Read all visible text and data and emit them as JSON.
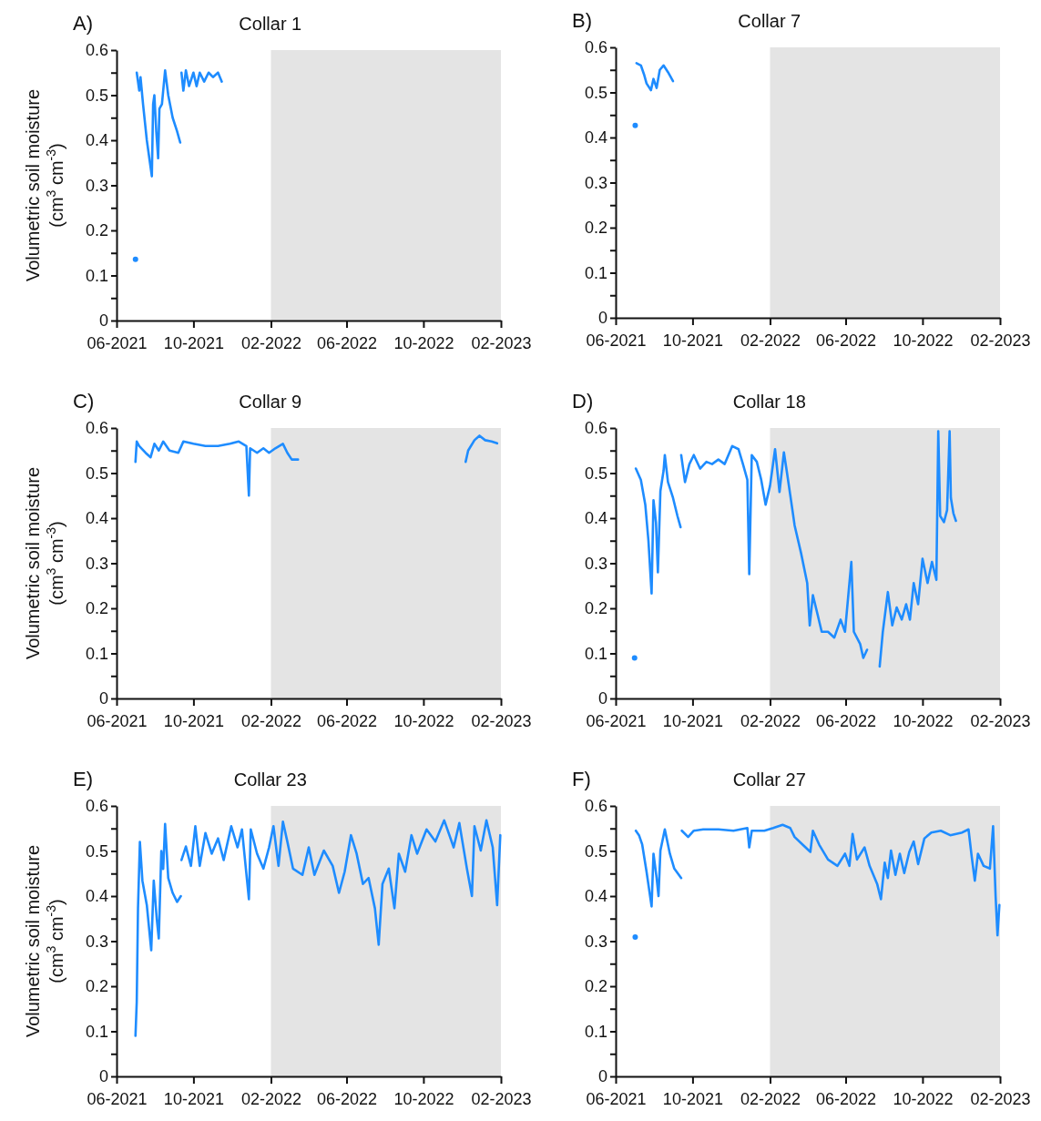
{
  "chart_data": [
    {
      "type": "line",
      "title": "Collar 1",
      "ylabel": "Volumetric soil moisture\n(cm$^{3}$ cm$^{-3}$)",
      "annotations": [
        "A)"
      ],
      "x": [
        "2021-07-01",
        "2021-07-02",
        "2021-07-03",
        "2021-07-07",
        "2021-07-09",
        "2021-07-13",
        "2021-07-19",
        "2021-07-24",
        "2021-07-27",
        "2021-07-29",
        "2021-07-31",
        "2021-08-03",
        "2021-08-06",
        "2021-08-08",
        "2021-08-12",
        "2021-08-17",
        "2021-08-22",
        "2021-08-29",
        "2021-09-05",
        "2021-09-10",
        "2021-09-11",
        "2021-09-12",
        "2021-09-15",
        "2021-09-19",
        "2021-09-24",
        "2021-10-01",
        "2021-10-06",
        "2021-10-11",
        "2021-10-18",
        "2021-10-25",
        "2021-11-01",
        "2021-11-09",
        "2021-11-15"
      ],
      "series": [
        {
          "color": "#1e8cff",
          "values": [
            0.136,
            null,
            0.55,
            0.51,
            0.54,
            0.48,
            0.4,
            0.35,
            0.32,
            0.48,
            0.5,
            0.42,
            0.36,
            0.47,
            0.48,
            0.555,
            0.5,
            0.45,
            0.42,
            0.395,
            null,
            0.55,
            0.51,
            0.555,
            0.52,
            0.55,
            0.52,
            0.55,
            0.53,
            0.55,
            0.54,
            0.55,
            0.53
          ]
        }
      ],
      "xlim": [
        "2021-06-01",
        "2023-02-01"
      ],
      "xticks": [
        {
          "value": "2021-06-01",
          "label": "06-2021"
        },
        {
          "value": "2021-10-01",
          "label": "10-2021"
        },
        {
          "value": "2022-02-01",
          "label": "02-2022"
        },
        {
          "value": "2022-06-01",
          "label": "06-2022"
        },
        {
          "value": "2022-10-01",
          "label": "10-2022"
        },
        {
          "value": "2023-02-01",
          "label": "02-2023"
        }
      ],
      "ylim": [
        0,
        0.6
      ],
      "yticks": [
        0,
        {
          "value": 0.05,
          "label": null
        },
        0.1,
        {
          "value": 0.15,
          "label": null
        },
        0.2,
        {
          "value": 0.25,
          "label": null
        },
        0.3,
        {
          "value": 0.35,
          "label": null
        },
        0.4,
        {
          "value": 0.45,
          "label": null
        },
        0.5,
        {
          "value": 0.55,
          "label": null
        },
        0.6
      ],
      "bands": [
        {
          "axis": "x",
          "from": "2022-02-01",
          "to": "2023-02-01",
          "color": "#e4e4e4"
        }
      ]
    },
    {
      "type": "line",
      "title": "Collar 7",
      "annotations": [
        "B)"
      ],
      "x": [
        "2021-07-02",
        "2021-07-03",
        "2021-07-04",
        "2021-07-11",
        "2021-07-16",
        "2021-07-20",
        "2021-07-27",
        "2021-07-31",
        "2021-08-05",
        "2021-08-10",
        "2021-08-16",
        "2021-08-23",
        "2021-08-31"
      ],
      "series": [
        {
          "color": "#1e8cff",
          "values": [
            0.427,
            null,
            0.565,
            0.56,
            0.54,
            0.52,
            0.505,
            0.53,
            0.51,
            0.55,
            0.56,
            0.545,
            0.525
          ]
        }
      ],
      "xlim": [
        "2021-06-01",
        "2023-02-01"
      ],
      "xticks": [
        {
          "value": "2021-06-01",
          "label": "06-2021"
        },
        {
          "value": "2021-10-01",
          "label": "10-2021"
        },
        {
          "value": "2022-02-01",
          "label": "02-2022"
        },
        {
          "value": "2022-06-01",
          "label": "06-2022"
        },
        {
          "value": "2022-10-01",
          "label": "10-2022"
        },
        {
          "value": "2023-02-01",
          "label": "02-2023"
        }
      ],
      "ylim": [
        0,
        0.6
      ],
      "yticks": [
        0,
        {
          "value": 0.05,
          "label": null
        },
        0.1,
        {
          "value": 0.15,
          "label": null
        },
        0.2,
        {
          "value": 0.25,
          "label": null
        },
        0.3,
        {
          "value": 0.35,
          "label": null
        },
        0.4,
        {
          "value": 0.45,
          "label": null
        },
        0.5,
        {
          "value": 0.55,
          "label": null
        },
        0.6
      ],
      "bands": [
        {
          "axis": "x",
          "from": "2022-02-01",
          "to": "2023-02-01",
          "color": "#e4e4e4"
        }
      ]
    },
    {
      "type": "line",
      "title": "Collar 9",
      "ylabel": "Volumetric soil moisture\n(cm$^{3}$ cm$^{-3}$)",
      "annotations": [
        "C)"
      ],
      "x": [
        "2021-07-01",
        "2021-07-03",
        "2021-07-07",
        "2021-07-17",
        "2021-07-25",
        "2021-07-31",
        "2021-08-07",
        "2021-08-14",
        "2021-08-24",
        "2021-09-07",
        "2021-09-15",
        "2021-10-01",
        "2021-10-20",
        "2021-11-09",
        "2021-11-28",
        "2021-12-12",
        "2021-12-24",
        "2021-12-28",
        "2021-12-30",
        "2022-01-10",
        "2022-01-20",
        "2022-01-29",
        "2022-02-08",
        "2022-02-20",
        "2022-02-27",
        "2022-03-06",
        "2022-03-16",
        "2022-07-01",
        "2022-12-07",
        "2022-12-11",
        "2022-12-21",
        "2022-12-29",
        "2023-01-07",
        "2023-01-17",
        "2023-01-26"
      ],
      "series": [
        {
          "color": "#1e8cff",
          "values": [
            0.525,
            0.57,
            0.56,
            0.545,
            0.535,
            0.565,
            0.55,
            0.57,
            0.55,
            0.545,
            0.57,
            0.565,
            0.56,
            0.56,
            0.565,
            0.57,
            0.56,
            0.45,
            0.555,
            0.545,
            0.555,
            0.545,
            0.555,
            0.565,
            0.545,
            0.53,
            0.53,
            null,
            0.525,
            0.55,
            0.573,
            0.583,
            0.573,
            0.57,
            0.566
          ]
        }
      ],
      "xlim": [
        "2021-06-01",
        "2023-02-01"
      ],
      "xticks": [
        {
          "value": "2021-06-01",
          "label": "06-2021"
        },
        {
          "value": "2021-10-01",
          "label": "10-2021"
        },
        {
          "value": "2022-02-01",
          "label": "02-2022"
        },
        {
          "value": "2022-06-01",
          "label": "06-2022"
        },
        {
          "value": "2022-10-01",
          "label": "10-2022"
        },
        {
          "value": "2023-02-01",
          "label": "02-2023"
        }
      ],
      "ylim": [
        0,
        0.6
      ],
      "yticks": [
        0,
        {
          "value": 0.05,
          "label": null
        },
        0.1,
        {
          "value": 0.15,
          "label": null
        },
        0.2,
        {
          "value": 0.25,
          "label": null
        },
        0.3,
        {
          "value": 0.35,
          "label": null
        },
        0.4,
        {
          "value": 0.45,
          "label": null
        },
        0.5,
        {
          "value": 0.55,
          "label": null
        },
        0.6
      ],
      "bands": [
        {
          "axis": "x",
          "from": "2022-02-01",
          "to": "2023-02-01",
          "color": "#e4e4e4"
        }
      ]
    },
    {
      "type": "line",
      "title": "Collar 18",
      "annotations": [
        "D)"
      ],
      "x": [
        "2021-07-01",
        "2021-07-02",
        "2021-07-03",
        "2021-07-11",
        "2021-07-18",
        "2021-07-23",
        "2021-07-28",
        "2021-07-31",
        "2021-08-04",
        "2021-08-07",
        "2021-08-11",
        "2021-08-16",
        "2021-08-18",
        "2021-08-23",
        "2021-08-31",
        "2021-09-07",
        "2021-09-12",
        "2021-09-12T12:00",
        "2021-09-13",
        "2021-09-19",
        "2021-09-26",
        "2021-10-03",
        "2021-10-13",
        "2021-10-23",
        "2021-11-01",
        "2021-11-11",
        "2021-11-21",
        "2021-12-03",
        "2021-12-13",
        "2021-12-20",
        "2021-12-27",
        "2021-12-30",
        "2022-01-03",
        "2022-01-11",
        "2022-01-18",
        "2022-01-25",
        "2022-02-01",
        "2022-02-09",
        "2022-02-16",
        "2022-02-23",
        "2022-02-28",
        "2022-03-05",
        "2022-03-12",
        "2022-03-22",
        "2022-04-01",
        "2022-04-05",
        "2022-04-10",
        "2022-04-17",
        "2022-04-24",
        "2022-05-04",
        "2022-05-14",
        "2022-05-24",
        "2022-05-31",
        "2022-06-10",
        "2022-06-14",
        "2022-06-24",
        "2022-06-29",
        "2022-07-05",
        "2022-07-15",
        "2022-07-25",
        "2022-07-30",
        "2022-08-07",
        "2022-08-14",
        "2022-08-21",
        "2022-08-29",
        "2022-09-05",
        "2022-09-11",
        "2022-09-17",
        "2022-09-24",
        "2022-10-01",
        "2022-10-09",
        "2022-10-16",
        "2022-10-23",
        "2022-10-26",
        "2022-10-29",
        "2022-11-04",
        "2022-11-09",
        "2022-11-13",
        "2022-11-15",
        "2022-11-19",
        "2022-11-23"
      ],
      "series": [
        {
          "color": "#1e8cff",
          "values": [
            0.09,
            null,
            0.51,
            0.485,
            0.43,
            0.35,
            0.233,
            0.44,
            0.39,
            0.28,
            0.46,
            0.505,
            0.54,
            0.48,
            0.445,
            0.405,
            0.38,
            null,
            0.54,
            0.48,
            0.52,
            0.54,
            0.51,
            0.525,
            0.52,
            0.53,
            0.52,
            0.56,
            0.553,
            0.52,
            0.485,
            0.276,
            0.54,
            0.525,
            0.485,
            0.43,
            0.472,
            0.553,
            0.458,
            0.546,
            0.5,
            0.452,
            0.384,
            0.324,
            0.256,
            0.162,
            0.229,
            0.189,
            0.148,
            0.148,
            0.135,
            0.175,
            0.148,
            0.303,
            0.148,
            0.121,
            0.09,
            0.108,
            null,
            0.071,
            0.148,
            0.236,
            0.162,
            0.202,
            0.175,
            0.209,
            0.175,
            0.256,
            0.209,
            0.31,
            0.256,
            0.303,
            0.263,
            0.593,
            0.405,
            0.391,
            0.418,
            0.593,
            0.445,
            0.411,
            0.394
          ]
        }
      ],
      "xlim": [
        "2021-06-01",
        "2023-02-01"
      ],
      "xticks": [
        {
          "value": "2021-06-01",
          "label": "06-2021"
        },
        {
          "value": "2021-10-01",
          "label": "10-2021"
        },
        {
          "value": "2022-02-01",
          "label": "02-2022"
        },
        {
          "value": "2022-06-01",
          "label": "06-2022"
        },
        {
          "value": "2022-10-01",
          "label": "10-2022"
        },
        {
          "value": "2023-02-01",
          "label": "02-2023"
        }
      ],
      "ylim": [
        0,
        0.6
      ],
      "yticks": [
        0,
        {
          "value": 0.05,
          "label": null
        },
        0.1,
        {
          "value": 0.15,
          "label": null
        },
        0.2,
        {
          "value": 0.25,
          "label": null
        },
        0.3,
        {
          "value": 0.35,
          "label": null
        },
        0.4,
        {
          "value": 0.45,
          "label": null
        },
        0.5,
        {
          "value": 0.55,
          "label": null
        },
        0.6
      ],
      "bands": [
        {
          "axis": "x",
          "from": "2022-02-01",
          "to": "2023-02-01",
          "color": "#e4e4e4"
        }
      ]
    },
    {
      "type": "line",
      "title": "Collar 23",
      "ylabel": "Volumetric soil moisture\n(cm$^{3}$ cm$^{-3}$)",
      "annotations": [
        "E)"
      ],
      "x": [
        "2021-07-01",
        "2021-07-03",
        "2021-07-05",
        "2021-07-08",
        "2021-07-12",
        "2021-07-19",
        "2021-07-26",
        "2021-07-30",
        "2021-08-04",
        "2021-08-07",
        "2021-08-11",
        "2021-08-14",
        "2021-08-17",
        "2021-08-22",
        "2021-08-29",
        "2021-09-05",
        "2021-09-11",
        "2021-09-11T12:00",
        "2021-09-12",
        "2021-09-19",
        "2021-09-27",
        "2021-10-04",
        "2021-10-11",
        "2021-10-20",
        "2021-10-30",
        "2021-11-09",
        "2021-11-18",
        "2021-11-30",
        "2021-12-10",
        "2021-12-17",
        "2021-12-28",
        "2021-12-31",
        "2022-01-10",
        "2022-01-20",
        "2022-01-29",
        "2022-02-05",
        "2022-02-13",
        "2022-02-20",
        "2022-02-27",
        "2022-03-08",
        "2022-03-23",
        "2022-04-02",
        "2022-04-11",
        "2022-04-26",
        "2022-05-10",
        "2022-05-20",
        "2022-05-29",
        "2022-06-08",
        "2022-06-17",
        "2022-06-27",
        "2022-07-06",
        "2022-07-16",
        "2022-07-22",
        "2022-07-28",
        "2022-08-07",
        "2022-08-16",
        "2022-08-23",
        "2022-09-02",
        "2022-09-12",
        "2022-09-21",
        "2022-10-06",
        "2022-10-20",
        "2022-11-03",
        "2022-11-18",
        "2022-11-27",
        "2022-12-09",
        "2022-12-17",
        "2022-12-21",
        "2022-12-31",
        "2023-01-09",
        "2023-01-19",
        "2023-01-26",
        "2023-01-31"
      ],
      "series": [
        {
          "color": "#1e8cff",
          "values": [
            0.09,
            0.165,
            0.373,
            0.52,
            0.434,
            0.38,
            0.28,
            0.434,
            0.346,
            0.306,
            0.5,
            0.46,
            0.56,
            0.44,
            0.407,
            0.387,
            0.4,
            null,
            0.48,
            0.51,
            0.467,
            0.555,
            0.467,
            0.54,
            0.494,
            0.528,
            0.48,
            0.555,
            0.508,
            0.548,
            0.393,
            0.548,
            0.494,
            0.461,
            0.508,
            0.555,
            0.467,
            0.565,
            0.521,
            0.461,
            0.447,
            0.508,
            0.447,
            0.501,
            0.467,
            0.407,
            0.454,
            0.535,
            0.494,
            0.427,
            0.44,
            0.373,
            0.292,
            0.427,
            0.461,
            0.373,
            0.494,
            0.454,
            0.535,
            0.494,
            0.548,
            0.521,
            0.568,
            0.508,
            0.562,
            0.461,
            0.4,
            0.555,
            0.501,
            0.568,
            0.508,
            0.38,
            0.535
          ]
        }
      ],
      "xlim": [
        "2021-06-01",
        "2023-02-01"
      ],
      "xticks": [
        {
          "value": "2021-06-01",
          "label": "06-2021"
        },
        {
          "value": "2021-10-01",
          "label": "10-2021"
        },
        {
          "value": "2022-02-01",
          "label": "02-2022"
        },
        {
          "value": "2022-06-01",
          "label": "06-2022"
        },
        {
          "value": "2022-10-01",
          "label": "10-2022"
        },
        {
          "value": "2023-02-01",
          "label": "02-2023"
        }
      ],
      "ylim": [
        0,
        0.6
      ],
      "yticks": [
        0,
        {
          "value": 0.05,
          "label": null
        },
        0.1,
        {
          "value": 0.15,
          "label": null
        },
        0.2,
        {
          "value": 0.25,
          "label": null
        },
        0.3,
        {
          "value": 0.35,
          "label": null
        },
        0.4,
        {
          "value": 0.45,
          "label": null
        },
        0.5,
        {
          "value": 0.55,
          "label": null
        },
        0.6
      ],
      "bands": [
        {
          "axis": "x",
          "from": "2022-02-01",
          "to": "2023-02-01",
          "color": "#e4e4e4"
        }
      ]
    },
    {
      "type": "line",
      "title": "Collar 27",
      "annotations": [
        "F)"
      ],
      "x": [
        "2021-07-02",
        "2021-07-02T12:00",
        "2021-07-03",
        "2021-07-08",
        "2021-07-13",
        "2021-07-20",
        "2021-07-28",
        "2021-07-31",
        "2021-08-05",
        "2021-08-08",
        "2021-08-11",
        "2021-08-15",
        "2021-08-18",
        "2021-08-26",
        "2021-09-02",
        "2021-09-13",
        "2021-09-13T12:00",
        "2021-09-14",
        "2021-09-24",
        "2021-10-03",
        "2021-10-18",
        "2021-11-11",
        "2021-12-05",
        "2021-12-27",
        "2021-12-30",
        "2022-01-03",
        "2022-01-23",
        "2022-02-06",
        "2022-02-21",
        "2022-03-05",
        "2022-03-12",
        "2022-03-27",
        "2022-04-06",
        "2022-04-10",
        "2022-04-20",
        "2022-05-04",
        "2022-05-19",
        "2022-05-31",
        "2022-06-07",
        "2022-06-12",
        "2022-06-19",
        "2022-07-01",
        "2022-07-09",
        "2022-07-21",
        "2022-07-27",
        "2022-08-02",
        "2022-08-07",
        "2022-08-12",
        "2022-08-19",
        "2022-08-26",
        "2022-09-02",
        "2022-09-10",
        "2022-09-17",
        "2022-09-24",
        "2022-10-04",
        "2022-10-15",
        "2022-10-30",
        "2022-11-14",
        "2022-12-03",
        "2022-12-13",
        "2022-12-18",
        "2022-12-23",
        "2022-12-28",
        "2023-01-06",
        "2023-01-16",
        "2023-01-21",
        "2023-01-25",
        "2023-01-28",
        "2023-01-31"
      ],
      "series": [
        {
          "color": "#1e8cff",
          "values": [
            0.309,
            null,
            0.545,
            0.535,
            0.515,
            0.454,
            0.377,
            0.494,
            0.44,
            0.4,
            0.501,
            0.528,
            0.548,
            0.494,
            0.461,
            0.44,
            null,
            0.545,
            0.531,
            0.545,
            0.548,
            0.548,
            0.545,
            0.551,
            0.508,
            0.545,
            0.545,
            0.551,
            0.558,
            0.551,
            0.531,
            0.511,
            0.498,
            0.545,
            0.514,
            0.481,
            0.467,
            0.494,
            0.467,
            0.538,
            0.481,
            0.508,
            0.467,
            0.427,
            0.393,
            0.474,
            0.44,
            0.501,
            0.447,
            0.494,
            0.451,
            0.498,
            0.521,
            0.471,
            0.528,
            0.541,
            0.545,
            0.535,
            0.541,
            0.548,
            0.488,
            0.434,
            0.494,
            0.467,
            0.461,
            0.555,
            0.4,
            0.313,
            0.38
          ]
        }
      ],
      "xlim": [
        "2021-06-01",
        "2023-02-01"
      ],
      "xticks": [
        {
          "value": "2021-06-01",
          "label": "06-2021"
        },
        {
          "value": "2021-10-01",
          "label": "10-2021"
        },
        {
          "value": "2022-02-01",
          "label": "02-2022"
        },
        {
          "value": "2022-06-01",
          "label": "06-2022"
        },
        {
          "value": "2022-10-01",
          "label": "10-2022"
        },
        {
          "value": "2023-02-01",
          "label": "02-2023"
        }
      ],
      "ylim": [
        0,
        0.6
      ],
      "yticks": [
        0,
        {
          "value": 0.05,
          "label": null
        },
        0.1,
        {
          "value": 0.15,
          "label": null
        },
        0.2,
        {
          "value": 0.25,
          "label": null
        },
        0.3,
        {
          "value": 0.35,
          "label": null
        },
        0.4,
        {
          "value": 0.45,
          "label": null
        },
        0.5,
        {
          "value": 0.55,
          "label": null
        },
        0.6
      ],
      "bands": [
        {
          "axis": "x",
          "from": "2022-02-01",
          "to": "2023-02-01",
          "color": "#e4e4e4"
        }
      ]
    }
  ]
}
